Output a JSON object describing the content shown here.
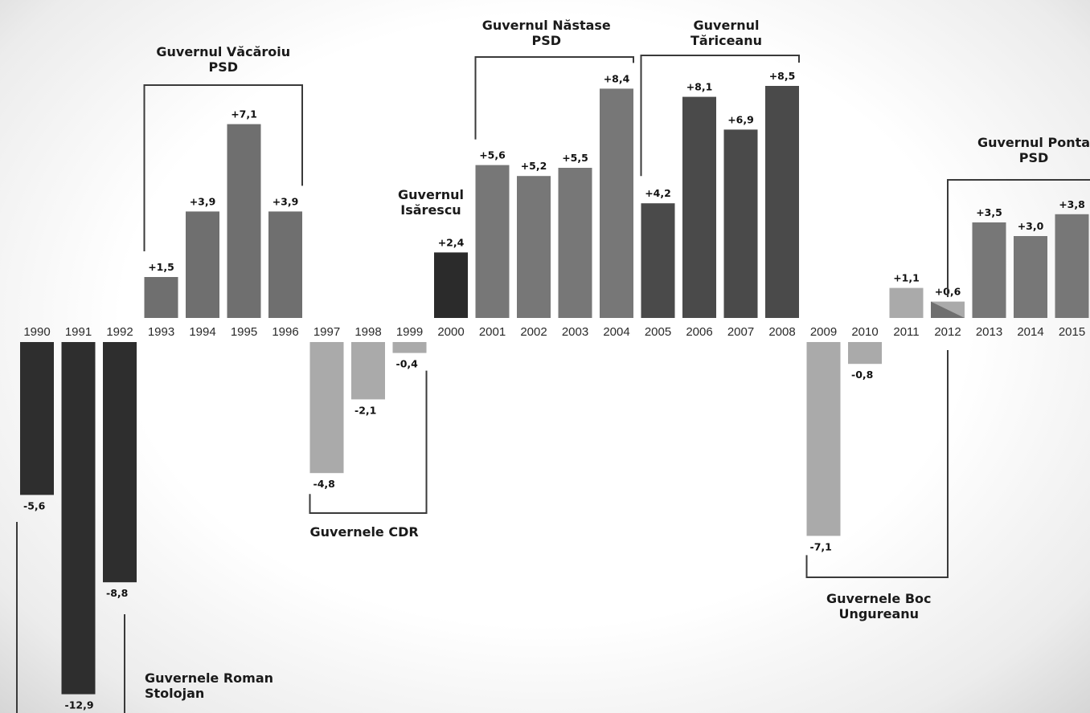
{
  "chart_data": {
    "type": "bar",
    "categories": [
      "1990",
      "1991",
      "1992",
      "1993",
      "1994",
      "1995",
      "1996",
      "1997",
      "1998",
      "1999",
      "2000",
      "2001",
      "2002",
      "2003",
      "2004",
      "2005",
      "2006",
      "2007",
      "2008",
      "2009",
      "2010",
      "2011",
      "2012",
      "2013",
      "2014",
      "2015"
    ],
    "values": [
      -5.6,
      -12.9,
      -8.8,
      1.5,
      3.9,
      7.1,
      3.9,
      -4.8,
      -2.1,
      -0.4,
      2.4,
      5.6,
      5.2,
      5.5,
      8.4,
      4.2,
      8.1,
      6.9,
      8.5,
      -7.1,
      -0.8,
      1.1,
      0.6,
      3.5,
      3.0,
      3.8
    ],
    "value_labels": [
      "-5,6",
      "-12,9",
      "-8,8",
      "+1,5",
      "+3,9",
      "+7,1",
      "+3,9",
      "-4,8",
      "-2,1",
      "-0,4",
      "+2,4",
      "+5,6",
      "+5,2",
      "+5,5",
      "+8,4",
      "+4,2",
      "+8,1",
      "+6,9",
      "+8,5",
      "-7,1",
      "-0,8",
      "+1,1",
      "+0,6",
      "+3,5",
      "+3,0",
      "+3,8"
    ],
    "bar_colors": [
      "#2e2e2e",
      "#2e2e2e",
      "#2e2e2e",
      "#6f6f6f",
      "#6f6f6f",
      "#6f6f6f",
      "#6f6f6f",
      "#aaaaaa",
      "#aaaaaa",
      "#aaaaaa",
      "#2b2b2b",
      "#777777",
      "#777777",
      "#777777",
      "#777777",
      "#4a4a4a",
      "#4a4a4a",
      "#4a4a4a",
      "#4a4a4a",
      "#aaaaaa",
      "#aaaaaa",
      "#aaaaaa",
      "#aaaaaa",
      "#777777",
      "#777777",
      "#777777"
    ],
    "ylim": [
      -13,
      9
    ],
    "grid": false,
    "legend": "none",
    "title": "",
    "xlabel": "",
    "ylabel": "",
    "governments": [
      {
        "lines": [
          "Guvernele Roman",
          "Stolojan"
        ],
        "from": "1990",
        "to": "1992"
      },
      {
        "lines": [
          "Guvernul Văcăroiu",
          "PSD"
        ],
        "from": "1993",
        "to": "1996"
      },
      {
        "lines": [
          "Guvernele CDR"
        ],
        "from": "1997",
        "to": "1999"
      },
      {
        "lines": [
          "Guvernul",
          "Isărescu"
        ],
        "from": "2000",
        "to": "2000"
      },
      {
        "lines": [
          "Guvernul Năstase",
          "PSD"
        ],
        "from": "2001",
        "to": "2004"
      },
      {
        "lines": [
          "Guvernul",
          "Tăriceanu"
        ],
        "from": "2005",
        "to": "2008"
      },
      {
        "lines": [
          "Guvernele Boc",
          "Ungureanu"
        ],
        "from": "2009",
        "to": "2012"
      },
      {
        "lines": [
          "Guvernul Ponta",
          "PSD"
        ],
        "from": "2012",
        "to": "2015"
      }
    ]
  }
}
